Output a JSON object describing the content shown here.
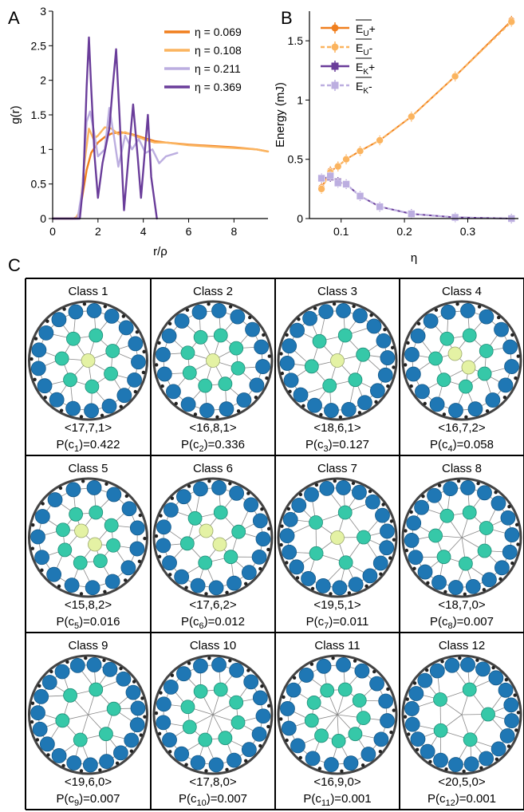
{
  "panels": {
    "A": "A",
    "B": "B",
    "C": "C"
  },
  "chart_data": [
    {
      "panel": "A",
      "type": "line",
      "xlabel": "r/ρ",
      "ylabel": "g(r)",
      "xlim": [
        0,
        9.5
      ],
      "ylim": [
        0,
        3
      ],
      "xticks": [
        0,
        2,
        4,
        6,
        8
      ],
      "yticks": [
        0,
        0.5,
        1,
        1.5,
        2,
        2.5,
        3
      ],
      "legend_position": "top-right",
      "grid": false,
      "series": [
        {
          "name": "η = 0.069",
          "color": "#f07f1e",
          "x": [
            0,
            0.9,
            1.1,
            1.3,
            1.5,
            1.7,
            2.0,
            2.3,
            2.6,
            3.0,
            3.5,
            4.0,
            4.5,
            5.0,
            6.0,
            7.0,
            8.0,
            9.0,
            9.5
          ],
          "y": [
            0,
            0,
            0.02,
            0.3,
            0.7,
            0.95,
            1.1,
            1.18,
            1.23,
            1.25,
            1.22,
            1.17,
            1.12,
            1.1,
            1.07,
            1.05,
            1.03,
            1.0,
            0.97
          ]
        },
        {
          "name": "η = 0.108",
          "color": "#fbb45f",
          "x": [
            0,
            1.0,
            1.2,
            1.4,
            1.6,
            1.8,
            2.0,
            2.3,
            2.6,
            2.9,
            3.2,
            3.6,
            4.0,
            4.5,
            5.0,
            6.0,
            7.0,
            8.0,
            9.0,
            9.5
          ],
          "y": [
            0,
            0,
            0.1,
            0.8,
            1.3,
            1.15,
            1.2,
            1.32,
            1.3,
            1.22,
            1.25,
            1.2,
            1.15,
            1.1,
            1.1,
            1.06,
            1.04,
            1.02,
            1.0,
            0.97
          ]
        },
        {
          "name": "η = 0.211",
          "color": "#bcaee0",
          "x": [
            0,
            1.1,
            1.3,
            1.5,
            1.65,
            1.8,
            2.0,
            2.3,
            2.5,
            2.7,
            2.9,
            3.2,
            3.5,
            3.8,
            4.1,
            4.4,
            4.7,
            5.0,
            5.5
          ],
          "y": [
            0,
            0,
            0.4,
            1.4,
            1.55,
            1.3,
            0.9,
            1.0,
            1.6,
            1.2,
            0.75,
            1.2,
            1.0,
            1.15,
            0.95,
            1.0,
            0.8,
            0.9,
            0.95
          ]
        },
        {
          "name": "η = 0.369",
          "color": "#6a3d9a",
          "x": [
            0,
            1.2,
            1.35,
            1.5,
            1.6,
            1.7,
            1.85,
            2.0,
            2.2,
            2.5,
            2.65,
            2.8,
            2.95,
            3.15,
            3.35,
            3.55,
            3.75,
            3.9,
            4.05,
            4.2,
            4.35,
            4.6
          ],
          "y": [
            0,
            0,
            0.5,
            1.9,
            2.62,
            1.9,
            0.9,
            0.3,
            0.8,
            1.3,
            1.9,
            2.45,
            1.5,
            0.12,
            0.9,
            1.65,
            0.9,
            0.3,
            0.9,
            1.5,
            0.6,
            0.0
          ]
        }
      ]
    },
    {
      "panel": "B",
      "type": "line",
      "xlabel": "η",
      "ylabel": "Energy (mJ)",
      "xlim": [
        0.05,
        0.38
      ],
      "ylim": [
        0,
        1.75
      ],
      "xticks": [
        0.1,
        0.2,
        0.3
      ],
      "yticks": [
        0,
        0.5,
        1,
        1.5
      ],
      "legend_position": "top-left",
      "grid": false,
      "x": [
        0.069,
        0.083,
        0.095,
        0.108,
        0.13,
        0.161,
        0.211,
        0.28,
        0.369
      ],
      "series": [
        {
          "name": "E_U+",
          "label_main": "E",
          "label_sub": "U",
          "label_suffix": "+",
          "color": "#f07f1e",
          "dashed": false,
          "marker": "circle",
          "y": [
            0.26,
            0.4,
            0.44,
            0.5,
            0.57,
            0.66,
            0.86,
            1.2,
            1.67
          ]
        },
        {
          "name": "E_U-",
          "label_main": "E",
          "label_sub": "U",
          "label_suffix": "-",
          "color": "#fbb45f",
          "dashed": true,
          "marker": "circle",
          "y": [
            0.25,
            0.39,
            0.44,
            0.5,
            0.57,
            0.66,
            0.86,
            1.2,
            1.66
          ]
        },
        {
          "name": "E_K+",
          "label_main": "E",
          "label_sub": "K",
          "label_suffix": "+",
          "color": "#6a3d9a",
          "dashed": false,
          "marker": "square",
          "y": [
            0.34,
            0.35,
            0.31,
            0.29,
            0.19,
            0.1,
            0.04,
            0.01,
            0.0
          ]
        },
        {
          "name": "E_K-",
          "label_main": "E",
          "label_sub": "K",
          "label_suffix": "-",
          "color": "#bcaee0",
          "dashed": true,
          "marker": "square",
          "y": [
            0.34,
            0.36,
            0.3,
            0.29,
            0.19,
            0.1,
            0.04,
            0.01,
            0.0
          ]
        }
      ]
    }
  ],
  "colors": {
    "outer": "#1f77b4",
    "middle": "#36c8a8",
    "center": "#e4f2a4",
    "edge": "#888888",
    "ring": "#444444"
  },
  "classes": [
    {
      "title": "Class 1",
      "triplet": "<17,7,1>",
      "prob_sub": "1",
      "prob_val": "0.422",
      "counts": [
        17,
        7,
        1
      ]
    },
    {
      "title": "Class 2",
      "triplet": "<16,8,1>",
      "prob_sub": "2",
      "prob_val": "0.336",
      "counts": [
        16,
        8,
        1
      ]
    },
    {
      "title": "Class 3",
      "triplet": "<18,6,1>",
      "prob_sub": "3",
      "prob_val": "0.127",
      "counts": [
        18,
        6,
        1
      ]
    },
    {
      "title": "Class 4",
      "triplet": "<16,7,2>",
      "prob_sub": "4",
      "prob_val": "0.058",
      "counts": [
        16,
        7,
        2
      ]
    },
    {
      "title": "Class 5",
      "triplet": "<15,8,2>",
      "prob_sub": "5",
      "prob_val": "0.016",
      "counts": [
        15,
        8,
        2
      ]
    },
    {
      "title": "Class 6",
      "triplet": "<17,6,2>",
      "prob_sub": "6",
      "prob_val": "0.012",
      "counts": [
        17,
        6,
        2
      ]
    },
    {
      "title": "Class 7",
      "triplet": "<19,5,1>",
      "prob_sub": "7",
      "prob_val": "0.011",
      "counts": [
        19,
        5,
        1
      ]
    },
    {
      "title": "Class 8",
      "triplet": "<18,7,0>",
      "prob_sub": "8",
      "prob_val": "0.007",
      "counts": [
        18,
        7,
        0
      ]
    },
    {
      "title": "Class 9",
      "triplet": "<19,6,0>",
      "prob_sub": "9",
      "prob_val": "0.007",
      "counts": [
        19,
        6,
        0
      ]
    },
    {
      "title": "Class 10",
      "triplet": "<17,8,0>",
      "prob_sub": "10",
      "prob_val": "0.007",
      "counts": [
        17,
        8,
        0
      ]
    },
    {
      "title": "Class 11",
      "triplet": "<16,9,0>",
      "prob_sub": "11",
      "prob_val": "0.001",
      "counts": [
        16,
        9,
        0
      ]
    },
    {
      "title": "Class 12",
      "triplet": "<20,5,0>",
      "prob_sub": "12",
      "prob_val": "0.001",
      "counts": [
        20,
        5,
        0
      ]
    }
  ]
}
